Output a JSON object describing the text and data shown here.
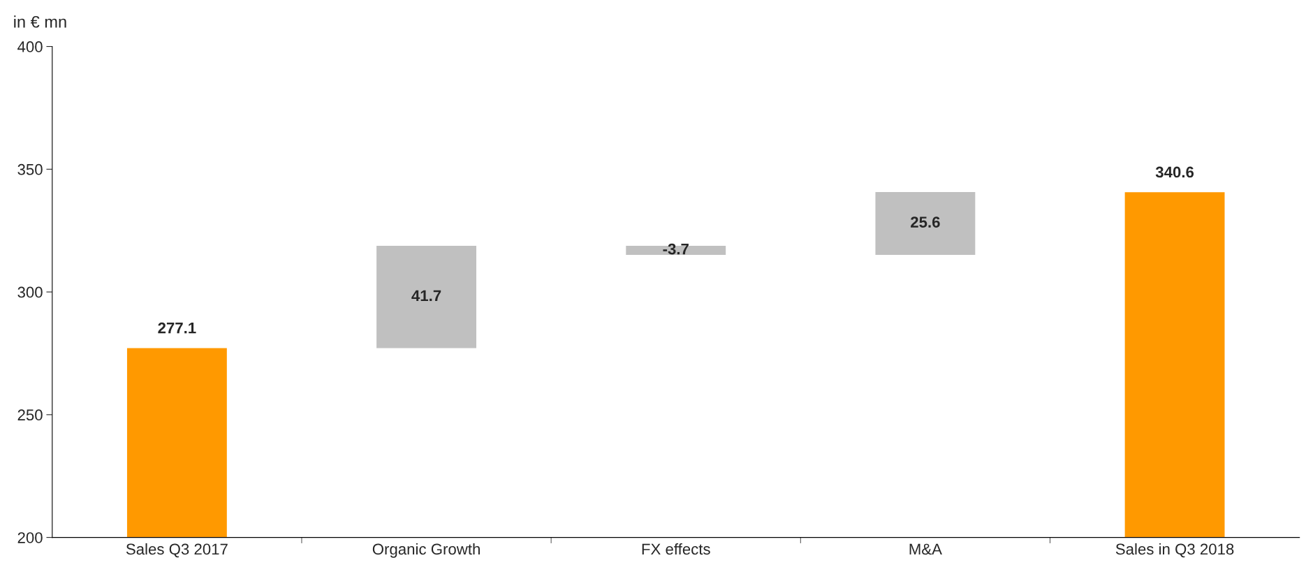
{
  "chart_data": {
    "type": "bar",
    "ylabel": "in € mn",
    "categories": [
      "Sales Q3 2017",
      "Organic Growth",
      "FX effects",
      "M&A",
      "Sales in Q3 2018"
    ],
    "base": [
      200,
      277.1,
      318.8,
      315.1,
      200
    ],
    "values": [
      77.1,
      41.7,
      -3.7,
      25.6,
      140.6
    ],
    "colors": [
      "#ff9900",
      "#c0c0c0",
      "#c0c0c0",
      "#c0c0c0",
      "#ff9900"
    ],
    "value_labels": [
      "277.1",
      "41.7",
      "-3.7",
      "25.6",
      "340.6"
    ],
    "ylim": [
      200,
      400
    ],
    "yticks": [
      200,
      250,
      300,
      350,
      400
    ],
    "grid": false,
    "legend": false
  }
}
